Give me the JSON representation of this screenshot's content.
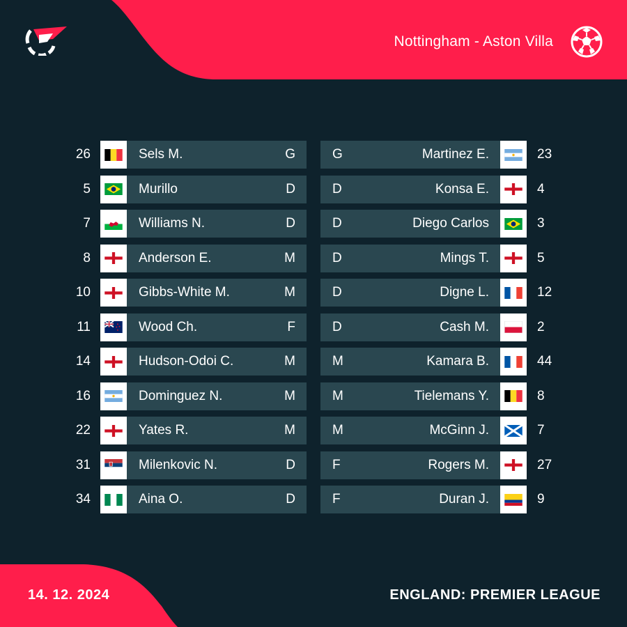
{
  "header": {
    "match_title": "Nottingham - Aston Villa"
  },
  "colors": {
    "background": "#0e222c",
    "accent": "#ff1e4b",
    "row": "#2a4750"
  },
  "home": {
    "players": [
      {
        "number": "26",
        "name": "Sels M.",
        "position": "G",
        "flag": "belgium"
      },
      {
        "number": "5",
        "name": "Murillo",
        "position": "D",
        "flag": "brazil"
      },
      {
        "number": "7",
        "name": "Williams N.",
        "position": "D",
        "flag": "wales"
      },
      {
        "number": "8",
        "name": "Anderson E.",
        "position": "M",
        "flag": "england"
      },
      {
        "number": "10",
        "name": "Gibbs-White M.",
        "position": "M",
        "flag": "england"
      },
      {
        "number": "11",
        "name": "Wood Ch.",
        "position": "F",
        "flag": "new-zealand"
      },
      {
        "number": "14",
        "name": "Hudson-Odoi C.",
        "position": "M",
        "flag": "england"
      },
      {
        "number": "16",
        "name": "Dominguez N.",
        "position": "M",
        "flag": "argentina"
      },
      {
        "number": "22",
        "name": "Yates R.",
        "position": "M",
        "flag": "england"
      },
      {
        "number": "31",
        "name": "Milenkovic N.",
        "position": "D",
        "flag": "serbia"
      },
      {
        "number": "34",
        "name": "Aina O.",
        "position": "D",
        "flag": "nigeria"
      }
    ]
  },
  "away": {
    "players": [
      {
        "number": "23",
        "name": "Martinez E.",
        "position": "G",
        "flag": "argentina"
      },
      {
        "number": "4",
        "name": "Konsa E.",
        "position": "D",
        "flag": "england"
      },
      {
        "number": "3",
        "name": "Diego Carlos",
        "position": "D",
        "flag": "brazil"
      },
      {
        "number": "5",
        "name": "Mings T.",
        "position": "D",
        "flag": "england"
      },
      {
        "number": "12",
        "name": "Digne L.",
        "position": "D",
        "flag": "france"
      },
      {
        "number": "2",
        "name": "Cash M.",
        "position": "D",
        "flag": "poland"
      },
      {
        "number": "44",
        "name": "Kamara B.",
        "position": "M",
        "flag": "france"
      },
      {
        "number": "8",
        "name": "Tielemans Y.",
        "position": "M",
        "flag": "belgium"
      },
      {
        "number": "7",
        "name": "McGinn J.",
        "position": "M",
        "flag": "scotland"
      },
      {
        "number": "27",
        "name": "Rogers M.",
        "position": "F",
        "flag": "england"
      },
      {
        "number": "9",
        "name": "Duran J.",
        "position": "F",
        "flag": "colombia"
      }
    ]
  },
  "footer": {
    "date": "14. 12. 2024",
    "league": "ENGLAND: PREMIER LEAGUE"
  },
  "icons": {
    "logo": "flashscore-logo-icon",
    "sport": "football-icon"
  }
}
